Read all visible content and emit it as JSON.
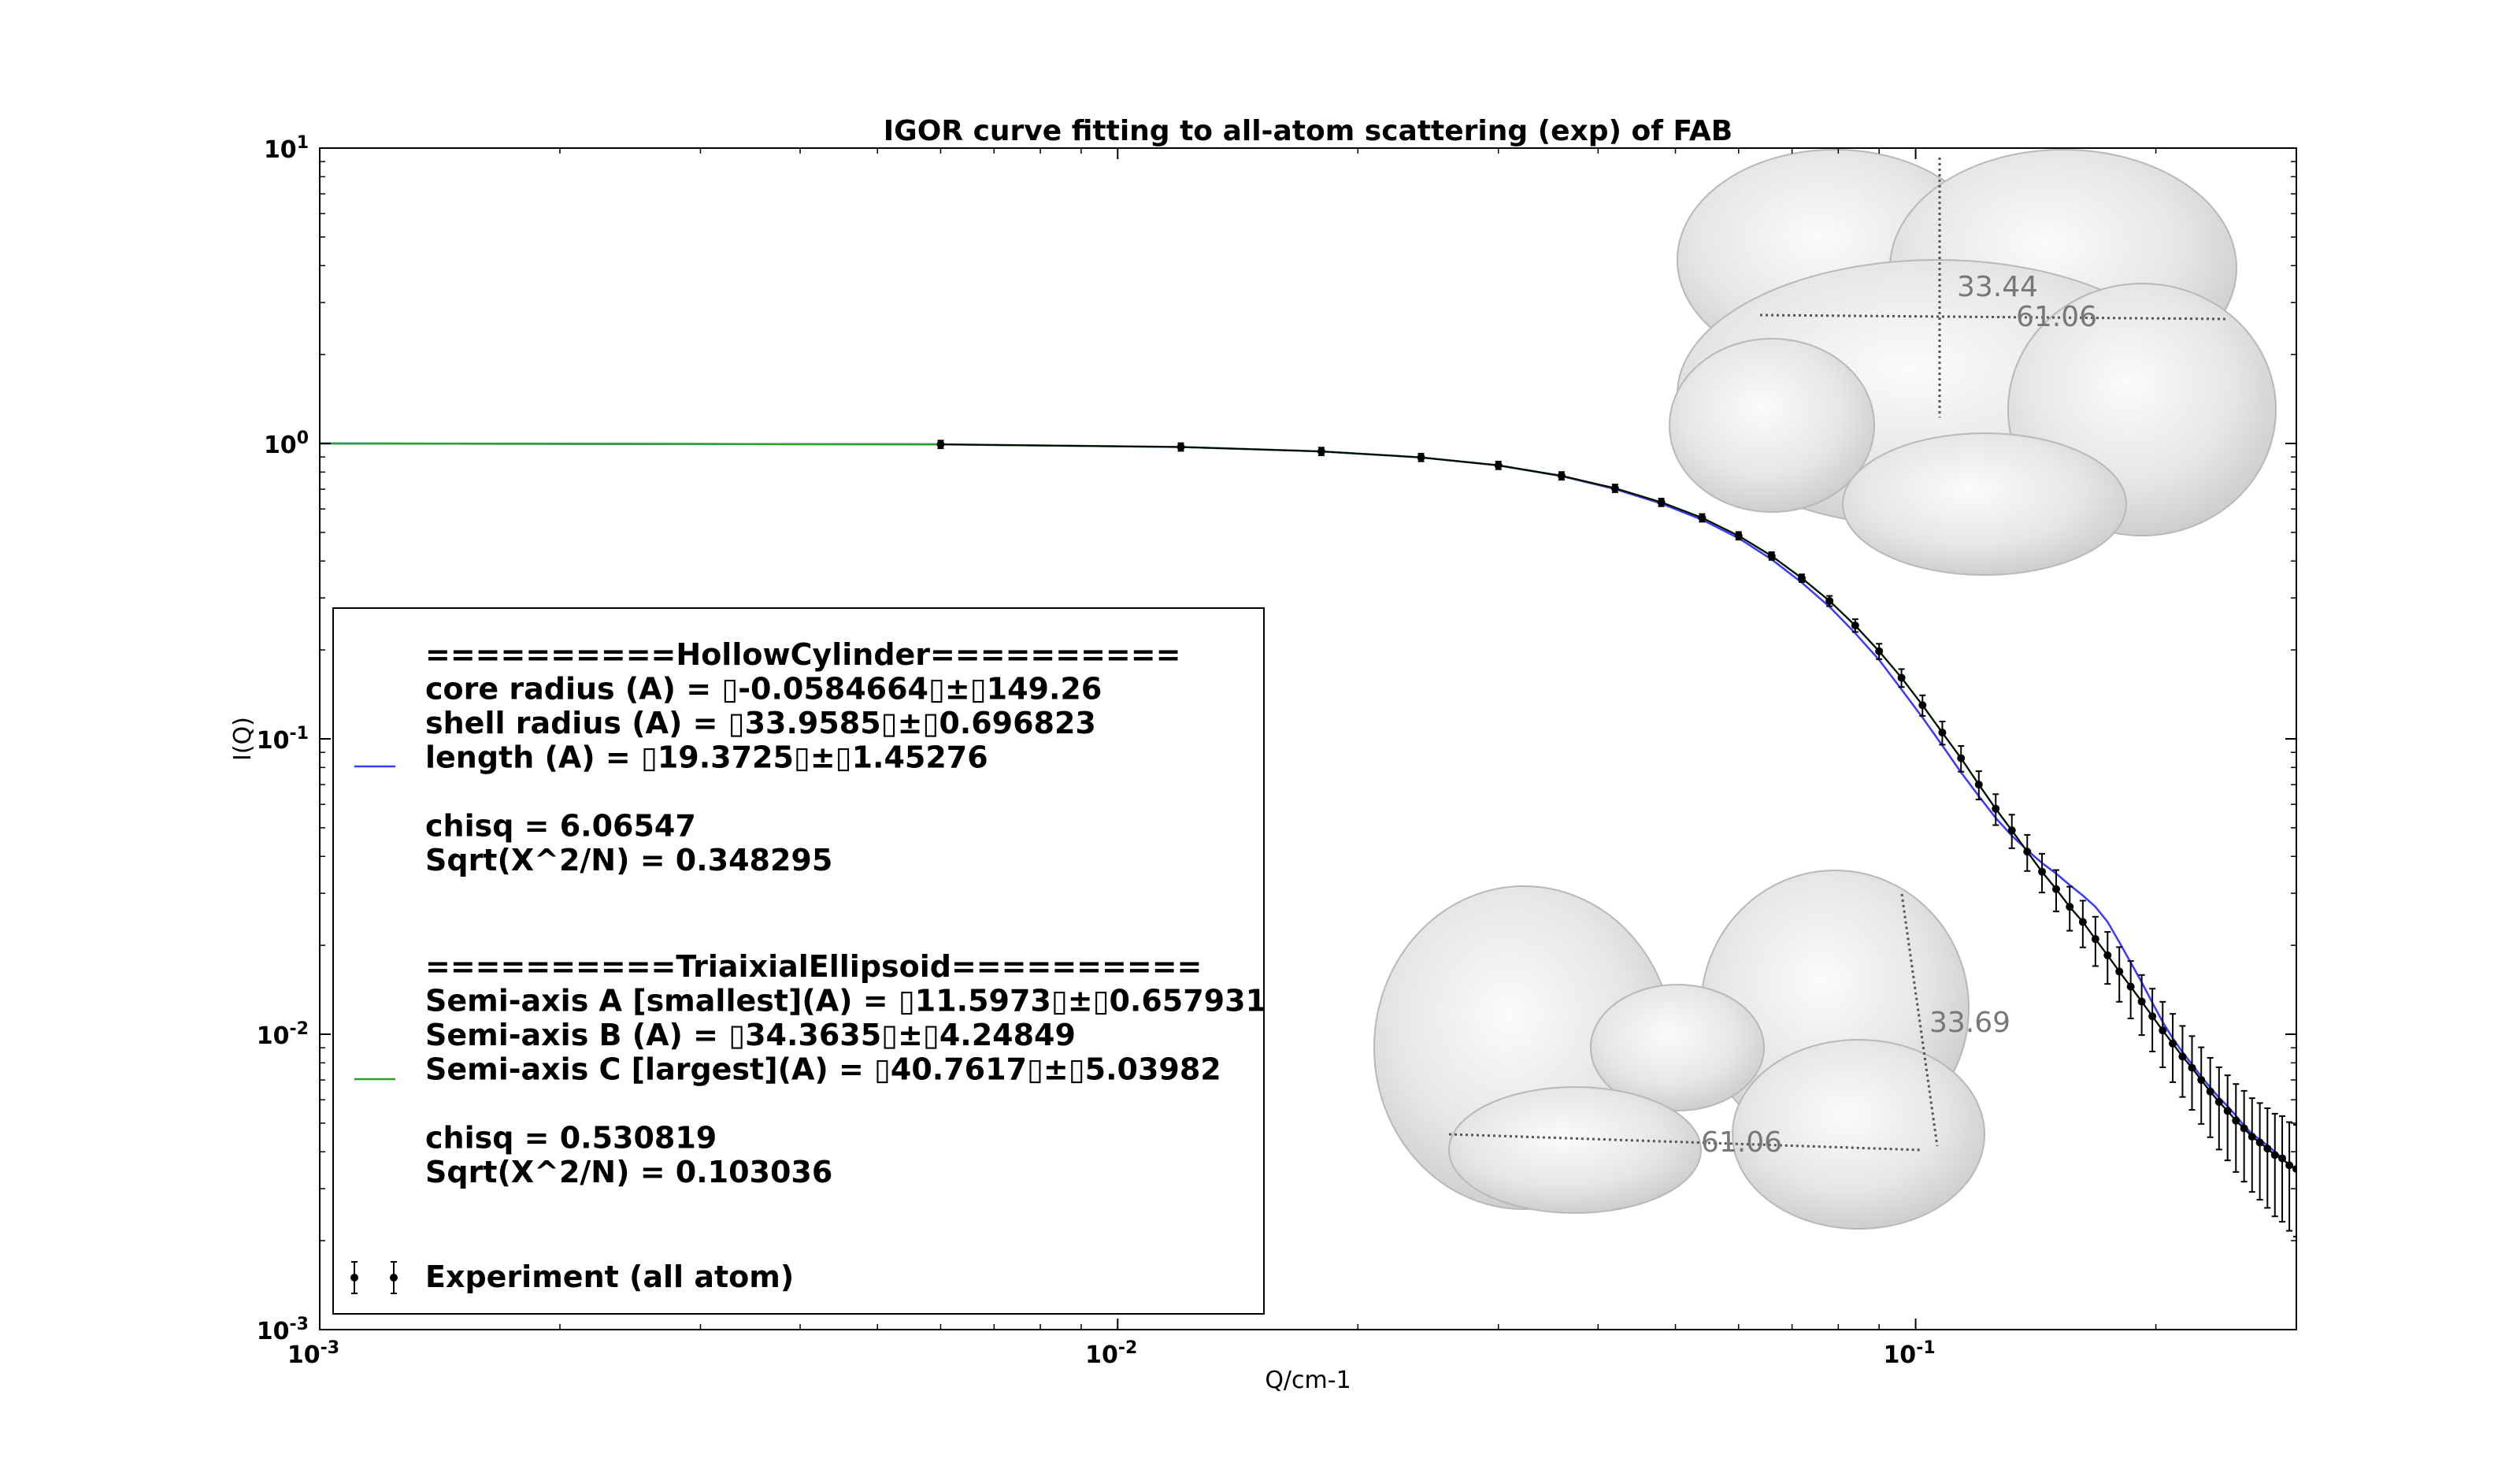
{
  "chart_data": {
    "type": "line",
    "title": "IGOR curve fitting to all-atom scattering (exp) of FAB",
    "xlabel": "Q/cm-1",
    "ylabel": "I(Q)",
    "xscale": "log",
    "yscale": "log",
    "xlim": [
      0.001,
      0.3
    ],
    "ylim": [
      0.001,
      10
    ],
    "x_ticks": [
      {
        "base": "10",
        "exp": "-3",
        "value": 0.001
      },
      {
        "base": "10",
        "exp": "-2",
        "value": 0.01
      },
      {
        "base": "10",
        "exp": "-1",
        "value": 0.1
      }
    ],
    "y_ticks": [
      {
        "base": "10",
        "exp": "-3",
        "value": 0.001
      },
      {
        "base": "10",
        "exp": "-2",
        "value": 0.01
      },
      {
        "base": "10",
        "exp": "-1",
        "value": 0.1
      },
      {
        "base": "10",
        "exp": "0",
        "value": 1
      },
      {
        "base": "10",
        "exp": "1",
        "value": 10
      }
    ],
    "legend_position": "lower-left",
    "grid": false,
    "series": [
      {
        "name": "HollowCylinder",
        "kind": "line",
        "color": "#3a3aff",
        "x": [
          0.001,
          0.006,
          0.012,
          0.018,
          0.024,
          0.03,
          0.036,
          0.042,
          0.048,
          0.054,
          0.06,
          0.066,
          0.072,
          0.078,
          0.084,
          0.09,
          0.096,
          0.102,
          0.108,
          0.114,
          0.12,
          0.126,
          0.132,
          0.138,
          0.144,
          0.15,
          0.156,
          0.162,
          0.168,
          0.174,
          0.18,
          0.186,
          0.192,
          0.198,
          0.204,
          0.21,
          0.216,
          0.222,
          0.228,
          0.234,
          0.24,
          0.246,
          0.252,
          0.258,
          0.264,
          0.27,
          0.276,
          0.282,
          0.288,
          0.294,
          0.3
        ],
        "y": [
          1.0,
          0.993,
          0.973,
          0.94,
          0.897,
          0.843,
          0.775,
          0.701,
          0.626,
          0.552,
          0.478,
          0.405,
          0.338,
          0.28,
          0.228,
          0.185,
          0.147,
          0.118,
          0.095,
          0.077,
          0.064,
          0.054,
          0.047,
          0.042,
          0.038,
          0.035,
          0.032,
          0.0295,
          0.027,
          0.024,
          0.0205,
          0.0175,
          0.015,
          0.0128,
          0.011,
          0.0097,
          0.0087,
          0.0079,
          0.0072,
          0.0066,
          0.0061,
          0.0057,
          0.0053,
          0.0049,
          0.0046,
          0.0044,
          0.0042,
          0.004,
          0.0038,
          0.0036,
          0.0035
        ]
      },
      {
        "name": "TriaixialEllipsoid",
        "kind": "line",
        "color": "#2ca02c",
        "x": [
          0.001,
          0.006,
          0.012,
          0.018,
          0.024,
          0.03,
          0.036,
          0.042,
          0.048,
          0.054,
          0.06,
          0.066,
          0.072,
          0.078,
          0.084,
          0.09,
          0.096,
          0.102,
          0.108,
          0.114,
          0.12,
          0.126,
          0.132,
          0.138,
          0.144,
          0.15,
          0.156,
          0.162,
          0.168,
          0.174,
          0.18,
          0.186,
          0.192,
          0.198,
          0.204,
          0.21,
          0.216,
          0.222,
          0.228,
          0.234,
          0.24,
          0.246,
          0.252,
          0.258,
          0.264,
          0.27,
          0.276,
          0.282,
          0.288,
          0.294,
          0.3
        ],
        "y": [
          1.0,
          0.993,
          0.973,
          0.94,
          0.897,
          0.843,
          0.777,
          0.705,
          0.632,
          0.56,
          0.487,
          0.416,
          0.35,
          0.293,
          0.242,
          0.198,
          0.161,
          0.13,
          0.105,
          0.086,
          0.07,
          0.058,
          0.049,
          0.0415,
          0.0355,
          0.031,
          0.027,
          0.024,
          0.021,
          0.0185,
          0.0163,
          0.0145,
          0.0129,
          0.0115,
          0.0103,
          0.0093,
          0.0084,
          0.0077,
          0.007,
          0.0064,
          0.0059,
          0.0055,
          0.0051,
          0.0048,
          0.0045,
          0.0043,
          0.0041,
          0.0039,
          0.0038,
          0.0036,
          0.0035
        ]
      },
      {
        "name": "Experiment (all atom)",
        "kind": "errorbar",
        "color": "#000000",
        "x": [
          0.006,
          0.012,
          0.018,
          0.024,
          0.03,
          0.036,
          0.042,
          0.048,
          0.054,
          0.06,
          0.066,
          0.072,
          0.078,
          0.084,
          0.09,
          0.096,
          0.102,
          0.108,
          0.114,
          0.12,
          0.126,
          0.132,
          0.138,
          0.144,
          0.15,
          0.156,
          0.162,
          0.168,
          0.174,
          0.18,
          0.186,
          0.192,
          0.198,
          0.204,
          0.21,
          0.216,
          0.222,
          0.228,
          0.234,
          0.24,
          0.246,
          0.252,
          0.258,
          0.264,
          0.27,
          0.276,
          0.282,
          0.288,
          0.294,
          0.3
        ],
        "y": [
          0.993,
          0.973,
          0.94,
          0.897,
          0.843,
          0.777,
          0.705,
          0.632,
          0.56,
          0.487,
          0.416,
          0.35,
          0.293,
          0.242,
          0.198,
          0.161,
          0.13,
          0.105,
          0.086,
          0.07,
          0.058,
          0.049,
          0.0415,
          0.0355,
          0.031,
          0.027,
          0.024,
          0.021,
          0.0185,
          0.0163,
          0.0145,
          0.0129,
          0.0115,
          0.0103,
          0.0093,
          0.0084,
          0.0077,
          0.007,
          0.0064,
          0.0059,
          0.0055,
          0.0051,
          0.0048,
          0.0045,
          0.0043,
          0.0041,
          0.0039,
          0.0038,
          0.0036,
          0.0035
        ],
        "err_rel": [
          0.03,
          0.03,
          0.03,
          0.03,
          0.03,
          0.03,
          0.03,
          0.03,
          0.03,
          0.03,
          0.03,
          0.03,
          0.04,
          0.05,
          0.06,
          0.07,
          0.08,
          0.09,
          0.1,
          0.11,
          0.12,
          0.13,
          0.14,
          0.15,
          0.16,
          0.17,
          0.18,
          0.19,
          0.2,
          0.21,
          0.22,
          0.23,
          0.24,
          0.25,
          0.26,
          0.27,
          0.28,
          0.29,
          0.3,
          0.31,
          0.32,
          0.33,
          0.34,
          0.35,
          0.36,
          0.37,
          0.38,
          0.39,
          0.4,
          0.41
        ]
      }
    ],
    "legend": [
      {
        "series": "HollowCylinder",
        "lines": [
          "==========HollowCylinder==========",
          "core radius (A) = ▯-0.0584664▯±▯149.26",
          "shell radius (A) = ▯33.9585▯±▯0.696823",
          "length (A) = ▯19.3725▯±▯1.45276",
          "",
          "chisq = 6.06547",
          "Sqrt(X^2/N) = 0.348295"
        ]
      },
      {
        "series": "TriaixialEllipsoid",
        "lines": [
          "==========TriaixialEllipsoid==========",
          "Semi-axis A [smallest](A) = ▯11.5973▯±▯0.657931",
          "Semi-axis B (A) = ▯34.3635▯±▯4.24849",
          "Semi-axis C [largest](A) = ▯40.7617▯±▯5.03982",
          "",
          "chisq = 0.530819",
          "Sqrt(X^2/N) = 0.103036"
        ]
      },
      {
        "series": "Experiment (all atom)",
        "lines": [
          "Experiment (all atom)"
        ]
      }
    ],
    "annotations": {
      "top_molecule": {
        "labels": [
          "33.44",
          "61.06"
        ]
      },
      "bottom_molecule": {
        "labels": [
          "33.69",
          "61.06"
        ]
      }
    }
  }
}
